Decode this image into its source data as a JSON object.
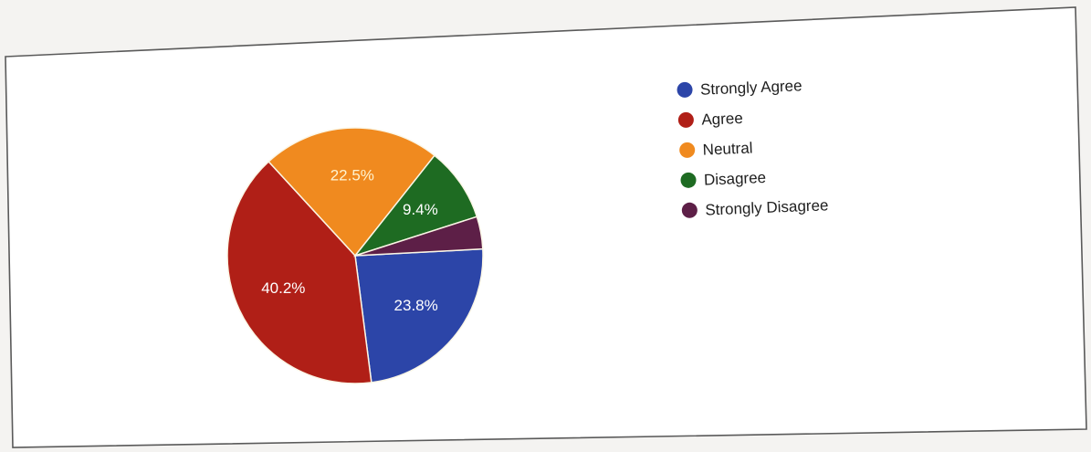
{
  "chart_data": {
    "type": "pie",
    "title": "",
    "slices": [
      {
        "name": "Strongly Agree",
        "value": 23.8,
        "label": "23.8%",
        "color": "#2c45a8"
      },
      {
        "name": "Agree",
        "value": 40.2,
        "label": "40.2%",
        "color": "#b01f17"
      },
      {
        "name": "Neutral",
        "value": 22.5,
        "label": "22.5%",
        "color": "#f08a1f"
      },
      {
        "name": "Disagree",
        "value": 9.4,
        "label": "9.4%",
        "color": "#1e6b22"
      },
      {
        "name": "Strongly Disagree",
        "value": 4.1,
        "label": "",
        "color": "#5d1f47"
      }
    ],
    "legend": {
      "position": "right",
      "entries": [
        "Strongly Agree",
        "Agree",
        "Neutral",
        "Disagree",
        "Strongly Disagree"
      ]
    }
  }
}
